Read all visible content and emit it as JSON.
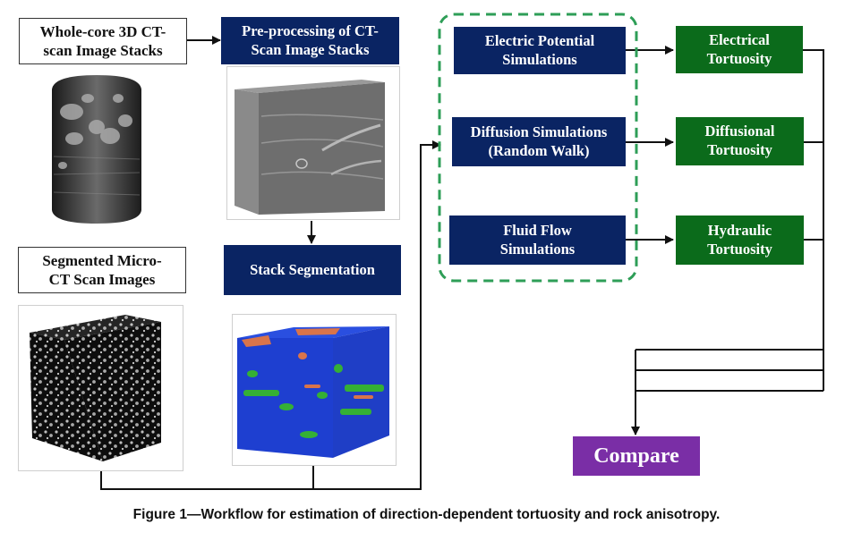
{
  "boxes": {
    "ct_stacks": "Whole-core 3D CT-\nscan Image Stacks",
    "preprocessing": "Pre-processing of CT-\nScan Image Stacks",
    "segmented": "Segmented Micro-\nCT Scan Images",
    "stack_segmentation": "Stack Segmentation",
    "electric_sim": "Electric Potential\nSimulations",
    "diffusion_sim": "Diffusion Simulations\n(Random Walk)",
    "fluid_sim": "Fluid Flow\nSimulations",
    "electrical_tort": "Electrical\nTortuosity",
    "diffusional_tort": "Diffusional\nTortuosity",
    "hydraulic_tort": "Hydraulic\nTortuosity",
    "compare": "Compare"
  },
  "caption": "Figure 1—Workflow for estimation of direction-dependent tortuosity and rock anisotropy.",
  "colors": {
    "navy": "#0a2463",
    "green": "#0b6b1b",
    "purple": "#7a2ea6",
    "dashed_group": "#2e9e57",
    "seg_blue": "#1e3fd0",
    "seg_green": "#35b035",
    "seg_orange": "#d9744a"
  }
}
